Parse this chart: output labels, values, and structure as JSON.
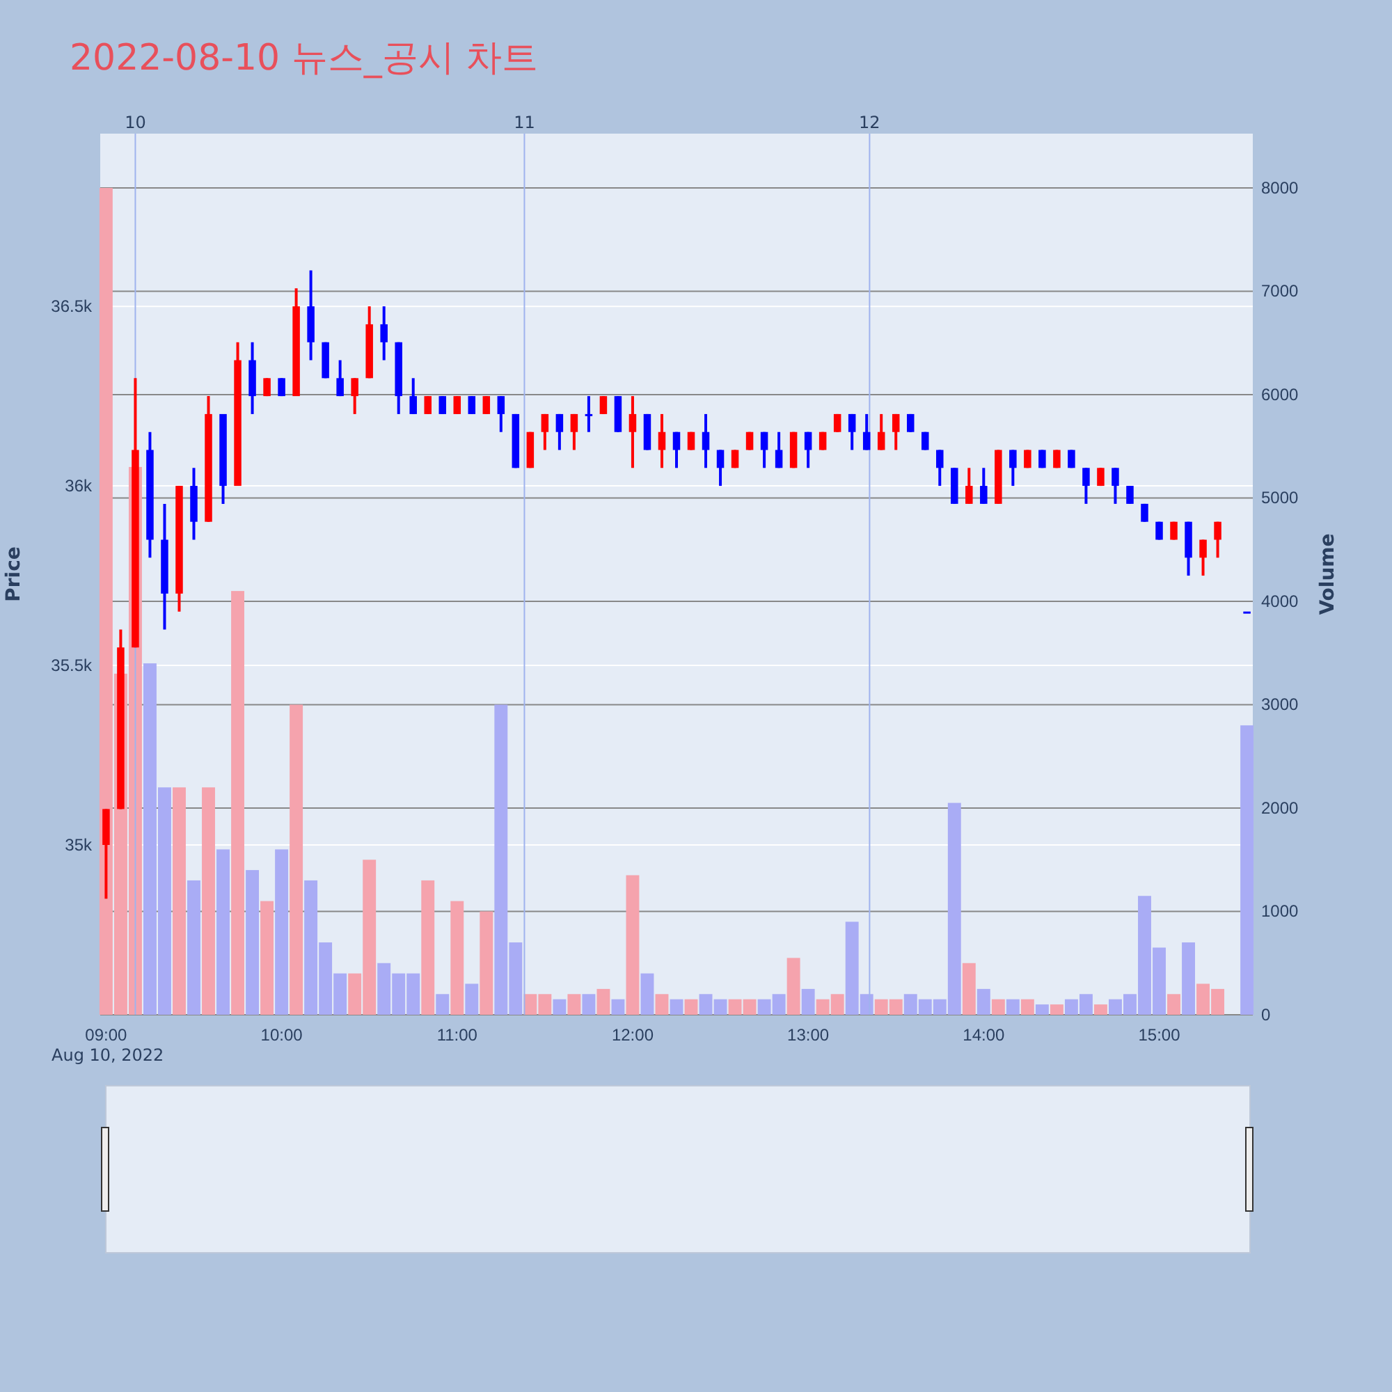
{
  "chart_data": {
    "type": "candlestick",
    "title": "2022-08-10 뉴스_공시 차트",
    "ylabel": "Price",
    "y2label": "Volume",
    "x": [
      "2022-08-10T09:00",
      "2022-08-10T09:05",
      "2022-08-10T09:10",
      "2022-08-10T09:15",
      "2022-08-10T09:20",
      "2022-08-10T09:25",
      "2022-08-10T09:30",
      "2022-08-10T09:35",
      "2022-08-10T09:40",
      "2022-08-10T09:45",
      "2022-08-10T09:50",
      "2022-08-10T09:55",
      "2022-08-10T10:00",
      "2022-08-10T10:05",
      "2022-08-10T10:10",
      "2022-08-10T10:15",
      "2022-08-10T10:20",
      "2022-08-10T10:25",
      "2022-08-10T10:30",
      "2022-08-10T10:35",
      "2022-08-10T10:40",
      "2022-08-10T10:45",
      "2022-08-10T10:50",
      "2022-08-10T10:55",
      "2022-08-10T11:00",
      "2022-08-10T11:05",
      "2022-08-10T11:10",
      "2022-08-10T11:15",
      "2022-08-10T11:20",
      "2022-08-10T11:25",
      "2022-08-10T11:30",
      "2022-08-10T11:35",
      "2022-08-10T11:40",
      "2022-08-10T11:45",
      "2022-08-10T11:50",
      "2022-08-10T11:55",
      "2022-08-10T12:00",
      "2022-08-10T12:05",
      "2022-08-10T12:10",
      "2022-08-10T12:15",
      "2022-08-10T12:20",
      "2022-08-10T12:25",
      "2022-08-10T12:30",
      "2022-08-10T12:35",
      "2022-08-10T12:40",
      "2022-08-10T12:45",
      "2022-08-10T12:50",
      "2022-08-10T12:55",
      "2022-08-10T13:00",
      "2022-08-10T13:05",
      "2022-08-10T13:10",
      "2022-08-10T13:15",
      "2022-08-10T13:20",
      "2022-08-10T13:25",
      "2022-08-10T13:30",
      "2022-08-10T13:35",
      "2022-08-10T13:40",
      "2022-08-10T13:45",
      "2022-08-10T13:50",
      "2022-08-10T13:55",
      "2022-08-10T14:00",
      "2022-08-10T14:05",
      "2022-08-10T14:10",
      "2022-08-10T14:15",
      "2022-08-10T14:20",
      "2022-08-10T14:25",
      "2022-08-10T14:30",
      "2022-08-10T14:35",
      "2022-08-10T14:40",
      "2022-08-10T14:45",
      "2022-08-10T14:50",
      "2022-08-10T14:55",
      "2022-08-10T15:00",
      "2022-08-10T15:05",
      "2022-08-10T15:10",
      "2022-08-10T15:15",
      "2022-08-10T15:20",
      "2022-08-10T15:30"
    ],
    "series": [
      {
        "ohlc": [
          [
            35000,
            35100,
            34850,
            35100
          ],
          [
            35100,
            35600,
            35100,
            35550
          ],
          [
            35550,
            36300,
            35550,
            36100
          ],
          [
            36100,
            36150,
            35800,
            35850
          ],
          [
            35850,
            35950,
            35600,
            35700
          ],
          [
            35700,
            36000,
            35650,
            36000
          ],
          [
            36000,
            36050,
            35850,
            35900
          ],
          [
            35900,
            36250,
            35900,
            36200
          ],
          [
            36200,
            36200,
            35950,
            36000
          ],
          [
            36000,
            36400,
            36000,
            36350
          ],
          [
            36350,
            36400,
            36200,
            36250
          ],
          [
            36250,
            36300,
            36250,
            36300
          ],
          [
            36300,
            36300,
            36250,
            36250
          ],
          [
            36250,
            36550,
            36250,
            36500
          ],
          [
            36500,
            36600,
            36350,
            36400
          ],
          [
            36400,
            36400,
            36300,
            36300
          ],
          [
            36300,
            36350,
            36250,
            36250
          ],
          [
            36250,
            36300,
            36200,
            36300
          ],
          [
            36300,
            36500,
            36300,
            36450
          ],
          [
            36450,
            36500,
            36350,
            36400
          ],
          [
            36400,
            36400,
            36200,
            36250
          ],
          [
            36250,
            36300,
            36200,
            36200
          ],
          [
            36200,
            36250,
            36200,
            36250
          ],
          [
            36250,
            36250,
            36200,
            36200
          ],
          [
            36200,
            36250,
            36200,
            36250
          ],
          [
            36250,
            36250,
            36200,
            36200
          ],
          [
            36200,
            36250,
            36200,
            36250
          ],
          [
            36250,
            36250,
            36150,
            36200
          ],
          [
            36200,
            36200,
            36050,
            36050
          ],
          [
            36050,
            36150,
            36050,
            36150
          ],
          [
            36150,
            36200,
            36100,
            36200
          ],
          [
            36200,
            36200,
            36100,
            36150
          ],
          [
            36150,
            36200,
            36100,
            36200
          ],
          [
            36200,
            36250,
            36150,
            36200
          ],
          [
            36200,
            36250,
            36200,
            36250
          ],
          [
            36250,
            36250,
            36150,
            36150
          ],
          [
            36150,
            36250,
            36050,
            36200
          ],
          [
            36200,
            36200,
            36100,
            36100
          ],
          [
            36100,
            36200,
            36050,
            36150
          ],
          [
            36150,
            36150,
            36050,
            36100
          ],
          [
            36100,
            36150,
            36100,
            36150
          ],
          [
            36150,
            36200,
            36050,
            36100
          ],
          [
            36100,
            36100,
            36000,
            36050
          ],
          [
            36050,
            36100,
            36050,
            36100
          ],
          [
            36100,
            36150,
            36100,
            36150
          ],
          [
            36150,
            36150,
            36050,
            36100
          ],
          [
            36100,
            36150,
            36050,
            36050
          ],
          [
            36050,
            36150,
            36050,
            36150
          ],
          [
            36150,
            36150,
            36050,
            36100
          ],
          [
            36100,
            36150,
            36100,
            36150
          ],
          [
            36150,
            36200,
            36150,
            36200
          ],
          [
            36200,
            36200,
            36100,
            36150
          ],
          [
            36150,
            36200,
            36100,
            36100
          ],
          [
            36100,
            36200,
            36100,
            36150
          ],
          [
            36150,
            36200,
            36100,
            36200
          ],
          [
            36200,
            36200,
            36150,
            36150
          ],
          [
            36150,
            36150,
            36100,
            36100
          ],
          [
            36100,
            36100,
            36000,
            36050
          ],
          [
            36050,
            36050,
            35950,
            35950
          ],
          [
            35950,
            36050,
            35950,
            36000
          ],
          [
            36000,
            36050,
            35950,
            35950
          ],
          [
            35950,
            36100,
            35950,
            36100
          ],
          [
            36100,
            36100,
            36000,
            36050
          ],
          [
            36050,
            36100,
            36050,
            36100
          ],
          [
            36100,
            36100,
            36050,
            36050
          ],
          [
            36050,
            36100,
            36050,
            36100
          ],
          [
            36100,
            36100,
            36050,
            36050
          ],
          [
            36050,
            36050,
            35950,
            36000
          ],
          [
            36000,
            36050,
            36000,
            36050
          ],
          [
            36050,
            36050,
            35950,
            36000
          ],
          [
            36000,
            36000,
            35950,
            35950
          ],
          [
            35950,
            35950,
            35900,
            35900
          ],
          [
            35900,
            35900,
            35850,
            35850
          ],
          [
            35850,
            35900,
            35850,
            35900
          ],
          [
            35900,
            35900,
            35750,
            35800
          ],
          [
            35800,
            35850,
            35750,
            35850
          ],
          [
            35850,
            35900,
            35800,
            35900
          ],
          [
            35650,
            35650,
            35650,
            35650
          ]
        ],
        "colors": [
          "#ff0000",
          "#ff0000",
          "#ff0000",
          "#0000ff",
          "#0000ff",
          "#ff0000",
          "#0000ff",
          "#ff0000",
          "#0000ff",
          "#ff0000",
          "#0000ff",
          "#ff0000",
          "#0000ff",
          "#ff0000",
          "#0000ff",
          "#0000ff",
          "#0000ff",
          "#ff0000",
          "#ff0000",
          "#0000ff",
          "#0000ff",
          "#0000ff",
          "#ff0000",
          "#0000ff",
          "#ff0000",
          "#0000ff",
          "#ff0000",
          "#0000ff",
          "#0000ff",
          "#ff0000",
          "#ff0000",
          "#0000ff",
          "#ff0000",
          "#0000ff",
          "#ff0000",
          "#0000ff",
          "#ff0000",
          "#0000ff",
          "#ff0000",
          "#0000ff",
          "#ff0000",
          "#0000ff",
          "#0000ff",
          "#ff0000",
          "#ff0000",
          "#0000ff",
          "#0000ff",
          "#ff0000",
          "#0000ff",
          "#ff0000",
          "#ff0000",
          "#0000ff",
          "#0000ff",
          "#ff0000",
          "#ff0000",
          "#0000ff",
          "#0000ff",
          "#0000ff",
          "#0000ff",
          "#ff0000",
          "#0000ff",
          "#ff0000",
          "#0000ff",
          "#ff0000",
          "#0000ff",
          "#ff0000",
          "#0000ff",
          "#0000ff",
          "#ff0000",
          "#0000ff",
          "#0000ff",
          "#0000ff",
          "#0000ff",
          "#ff0000",
          "#0000ff",
          "#ff0000",
          "#ff0000",
          "#0000ff"
        ]
      },
      {
        "type": "bar",
        "axis": "y2",
        "values": [
          8000,
          3300,
          5300,
          3400,
          2200,
          2200,
          1300,
          2200,
          1600,
          4100,
          1400,
          1100,
          1600,
          3000,
          1300,
          700,
          400,
          400,
          1500,
          500,
          400,
          400,
          1300,
          200,
          1100,
          300,
          1000,
          3000,
          700,
          200,
          200,
          150,
          200,
          200,
          250,
          150,
          1350,
          400,
          200,
          150,
          150,
          200,
          150,
          150,
          150,
          150,
          200,
          550,
          250,
          150,
          200,
          900,
          200,
          150,
          150,
          200,
          150,
          150,
          2050,
          500,
          250,
          150,
          150,
          150,
          100,
          100,
          150,
          200,
          100,
          150,
          200,
          1150,
          650,
          200,
          700,
          300,
          250,
          2800
        ],
        "colors": [
          "#f5a3ad",
          "#f5a3ad",
          "#f5a3ad",
          "#a9acf5",
          "#a9acf5",
          "#f5a3ad",
          "#a9acf5",
          "#f5a3ad",
          "#a9acf5",
          "#f5a3ad",
          "#a9acf5",
          "#f5a3ad",
          "#a9acf5",
          "#f5a3ad",
          "#a9acf5",
          "#a9acf5",
          "#a9acf5",
          "#f5a3ad",
          "#f5a3ad",
          "#a9acf5",
          "#a9acf5",
          "#a9acf5",
          "#f5a3ad",
          "#a9acf5",
          "#f5a3ad",
          "#a9acf5",
          "#f5a3ad",
          "#a9acf5",
          "#a9acf5",
          "#f5a3ad",
          "#f5a3ad",
          "#a9acf5",
          "#f5a3ad",
          "#a9acf5",
          "#f5a3ad",
          "#a9acf5",
          "#f5a3ad",
          "#a9acf5",
          "#f5a3ad",
          "#a9acf5",
          "#f5a3ad",
          "#a9acf5",
          "#a9acf5",
          "#f5a3ad",
          "#f5a3ad",
          "#a9acf5",
          "#a9acf5",
          "#f5a3ad",
          "#a9acf5",
          "#f5a3ad",
          "#f5a3ad",
          "#a9acf5",
          "#a9acf5",
          "#f5a3ad",
          "#f5a3ad",
          "#a9acf5",
          "#a9acf5",
          "#a9acf5",
          "#a9acf5",
          "#f5a3ad",
          "#a9acf5",
          "#f5a3ad",
          "#a9acf5",
          "#f5a3ad",
          "#a9acf5",
          "#f5a3ad",
          "#a9acf5",
          "#a9acf5",
          "#f5a3ad",
          "#a9acf5",
          "#a9acf5",
          "#a9acf5",
          "#a9acf5",
          "#f5a3ad",
          "#a9acf5",
          "#f5a3ad",
          "#f5a3ad",
          "#a9acf5"
        ]
      }
    ],
    "xlim": [
      "2022-08-10T08:58",
      "2022-08-10T15:32"
    ],
    "xticks": [
      {
        "value": "2022-08-10T09:00",
        "label": "09:00"
      },
      {
        "value": "2022-08-10T10:00",
        "label": "10:00"
      },
      {
        "value": "2022-08-10T11:00",
        "label": "11:00"
      },
      {
        "value": "2022-08-10T12:00",
        "label": "12:00"
      },
      {
        "value": "2022-08-10T13:00",
        "label": "13:00"
      },
      {
        "value": "2022-08-10T14:00",
        "label": "14:00"
      },
      {
        "value": "2022-08-10T15:00",
        "label": "15:00"
      }
    ],
    "ylim": [
      34527,
      36981
    ],
    "yticks": [
      {
        "value": 35000,
        "label": "35k"
      },
      {
        "value": 35500,
        "label": "35.5k"
      },
      {
        "value": 36000,
        "label": "36k"
      },
      {
        "value": 36500,
        "label": "36.5k"
      }
    ],
    "y2lim": [
      0,
      8525
    ],
    "y2ticks": [
      0,
      1000,
      2000,
      3000,
      4000,
      5000,
      6000,
      7000,
      8000
    ],
    "ref_lines": [
      {
        "axis": "x",
        "value": "2022-08-10T09:10",
        "label": "10",
        "color": "#9fb3ee"
      },
      {
        "axis": "x",
        "value": "2022-08-10T11:23",
        "label": "11",
        "color": "#9fb3ee"
      },
      {
        "axis": "x",
        "value": "2022-08-10T13:21",
        "label": "12",
        "color": "#9fb3ee"
      }
    ],
    "annotations": [
      "Aug 10, 2022"
    ],
    "grid": "y"
  }
}
